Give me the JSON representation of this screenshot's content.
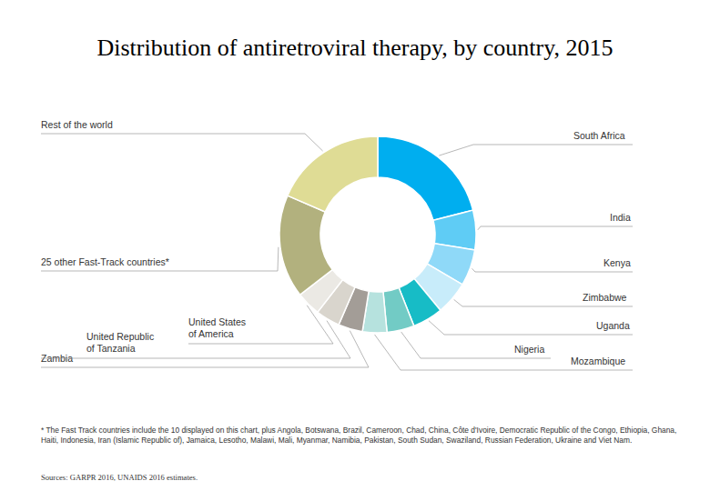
{
  "chart_data": {
    "type": "donut",
    "title": "Distribution of antiretroviral therapy, by country, 2015",
    "categories": [
      "South Africa",
      "India",
      "Kenya",
      "Zimbabwe",
      "Uganda",
      "Nigeria",
      "Mozambique",
      "Zambia",
      "United Republic of Tanzania",
      "United States of America",
      "25 other Fast-Track countries*",
      "Rest of the world"
    ],
    "values": [
      21,
      6.5,
      6,
      5.5,
      5,
      4.5,
      4,
      4,
      4,
      4,
      17,
      18.5
    ],
    "colors": [
      "#00aeef",
      "#5fccf5",
      "#8fd9f8",
      "#c8ecfa",
      "#17bcc6",
      "#72cbc5",
      "#b6e2de",
      "#a39d97",
      "#d9d5cd",
      "#ebe9e4",
      "#b2b17e",
      "#dfdc95"
    ],
    "footnote": "* The Fast Track countries include the 10 displayed on this chart, plus Angola, Botswana, Brazil, Cameroon, Chad, China, Côte d'Ivoire, Democratic Republic of the Congo, Ethiopia, Ghana, Haiti, Indonesia, Iran (Islamic Republic of), Jamaica, Lesotho, Malawi, Mali, Myanmar, Namibia, Pakistan, South Sudan, Swaziland, Russian Federation, Ukraine and Viet Nam.",
    "source": "Sources: GARPR 2016, UNAIDS 2016 estimates."
  }
}
